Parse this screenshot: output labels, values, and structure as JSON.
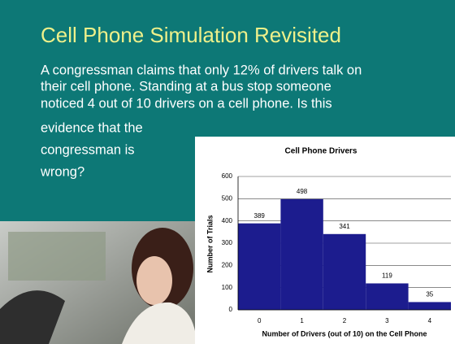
{
  "slide": {
    "title": "Cell Phone Simulation Revisited",
    "body": [
      "A congressman claims that only 12% of drivers talk on",
      "their cell phone. Standing at a bus stop someone",
      "noticed 4 out of 10 drivers on a cell phone. Is this",
      "evidence that the",
      "congressman is",
      "wrong?"
    ]
  },
  "chart_data": {
    "type": "bar",
    "title": "Cell Phone Drivers",
    "x_label": "Number of Drivers (out of 10) on the Cell Phone",
    "y_label": "Number of Trials",
    "categories": [
      "0",
      "1",
      "2",
      "3",
      "4"
    ],
    "values": [
      389,
      498,
      341,
      119,
      35
    ],
    "color": "#1c1c8e",
    "ylim": [
      0,
      600
    ],
    "yticks": [
      0,
      100,
      200,
      300,
      400,
      500,
      600
    ],
    "grid": true
  }
}
